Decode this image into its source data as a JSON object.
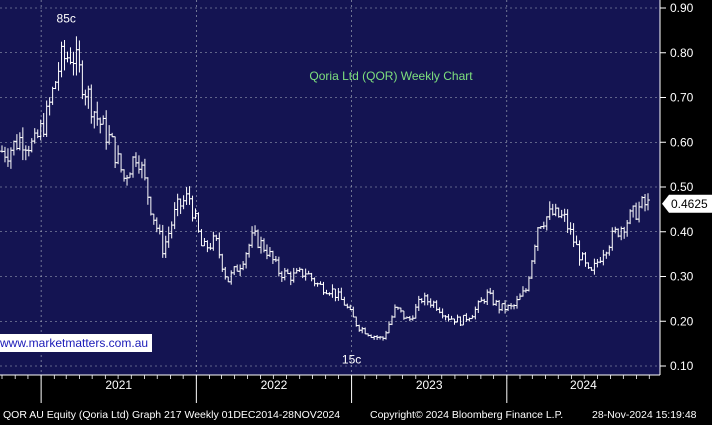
{
  "chart_data": {
    "type": "bar",
    "subtype": "ohlc",
    "title": "Qoria Ltd (QOR) Weekly Chart",
    "x_tick_labels": [
      "2021",
      "2022",
      "2023",
      "2024"
    ],
    "y_ticks": [
      0.1,
      0.2,
      0.3,
      0.4,
      0.5,
      0.6,
      0.7,
      0.8,
      0.9
    ],
    "ylim": [
      0.075,
      0.93
    ],
    "grid": true,
    "last_price": "0.4625",
    "annotations": [
      {
        "text": "85c",
        "date": "2021-03",
        "value": 0.85
      },
      {
        "text": "15c",
        "date": "2023-01",
        "value": 0.15
      }
    ],
    "series": [
      {
        "x": [
          "2020-10",
          "2020-11",
          "2020-12",
          "2021-01",
          "2021-02",
          "2021-03",
          "2021-04",
          "2021-05",
          "2021-06",
          "2021-07",
          "2021-08",
          "2021-09",
          "2021-10",
          "2021-11",
          "2021-12",
          "2022-01",
          "2022-02",
          "2022-03",
          "2022-04",
          "2022-05",
          "2022-06",
          "2022-07",
          "2022-08",
          "2022-09",
          "2022-10",
          "2022-11",
          "2022-12",
          "2023-01",
          "2023-02",
          "2023-03",
          "2023-04",
          "2023-05",
          "2023-06",
          "2023-07",
          "2023-08",
          "2023-09",
          "2023-10",
          "2023-11",
          "2023-12",
          "2024-01",
          "2024-02",
          "2024-03",
          "2024-04",
          "2024-05",
          "2024-06",
          "2024-07",
          "2024-08",
          "2024-09",
          "2024-10",
          "2024-11"
        ],
        "values": [
          0.58,
          0.61,
          0.59,
          0.66,
          0.78,
          0.8,
          0.72,
          0.65,
          0.6,
          0.52,
          0.58,
          0.46,
          0.36,
          0.45,
          0.48,
          0.36,
          0.38,
          0.29,
          0.33,
          0.39,
          0.36,
          0.31,
          0.3,
          0.31,
          0.28,
          0.27,
          0.24,
          0.19,
          0.17,
          0.16,
          0.23,
          0.2,
          0.25,
          0.24,
          0.21,
          0.2,
          0.22,
          0.26,
          0.23,
          0.23,
          0.27,
          0.42,
          0.44,
          0.43,
          0.36,
          0.3,
          0.36,
          0.4,
          0.43,
          0.46
        ]
      }
    ]
  },
  "watermark": "www.marketmatters.com.au",
  "footer": {
    "left": "QOR AU Equity (Qoria Ltd) Graph 217  Weekly 01DEC2014-28NOV2024",
    "middle": "Copyright© 2024 Bloomberg Finance L.P.",
    "right": "28-Nov-2024 15:19:48"
  },
  "colors": {
    "plot_background": "#141452",
    "grid": "#aeb6c2",
    "bars": "#ffffff",
    "title": "#7ee07e",
    "price_tag": "#ffffff"
  }
}
